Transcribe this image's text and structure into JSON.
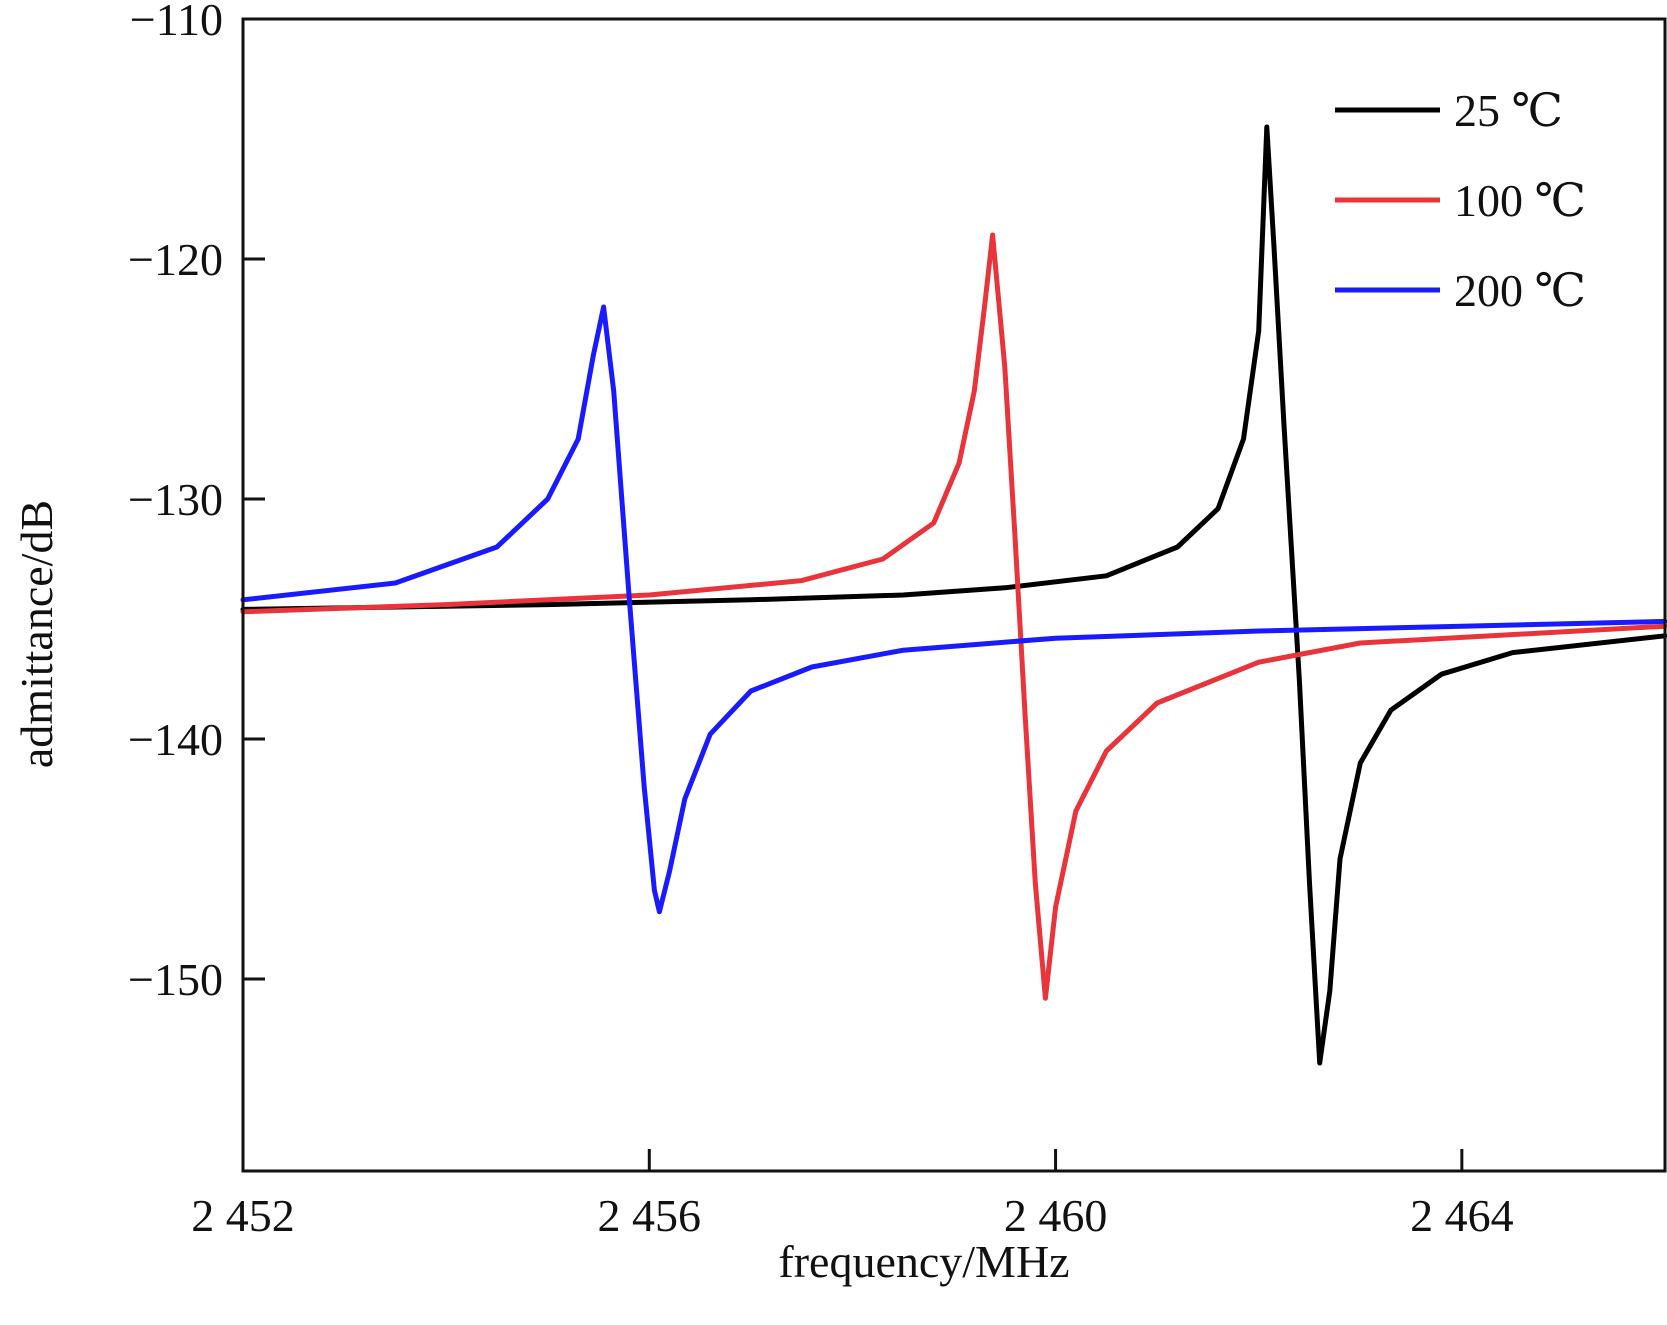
{
  "chart_data": {
    "type": "line",
    "title": "",
    "xlabel": "frequency/MHz",
    "ylabel": "admittance/dB",
    "xlim": [
      2452,
      2466
    ],
    "ylim": [
      -158,
      -110
    ],
    "xticks": [
      2452,
      2456,
      2460,
      2464
    ],
    "xtick_labels": [
      "2 452",
      "2 456",
      "2 460",
      "2 464"
    ],
    "yticks": [
      -110,
      -120,
      -130,
      -140,
      -150
    ],
    "ytick_labels": [
      "−110",
      "−120",
      "−130",
      "−140",
      "−150"
    ],
    "grid": false,
    "legend_position": "top-right",
    "series": [
      {
        "name": "25 ℃",
        "color": "#000000",
        "x": [
          2452,
          2455,
          2457,
          2458.5,
          2459.5,
          2460.5,
          2461.2,
          2461.6,
          2461.85,
          2462.0,
          2462.08,
          2462.15,
          2462.25,
          2462.4,
          2462.5,
          2462.6,
          2462.7,
          2462.8,
          2463.0,
          2463.3,
          2463.8,
          2464.5,
          2466
        ],
        "y": [
          -134.6,
          -134.4,
          -134.2,
          -134.0,
          -133.7,
          -133.2,
          -132.0,
          -130.4,
          -127.5,
          -123.0,
          -114.5,
          -119.5,
          -127.0,
          -137.5,
          -146.0,
          -153.5,
          -150.5,
          -145.0,
          -141.0,
          -138.8,
          -137.3,
          -136.4,
          -135.7
        ]
      },
      {
        "name": "100 ℃",
        "color": "#e8343a",
        "x": [
          2452,
          2454,
          2456,
          2457.5,
          2458.3,
          2458.8,
          2459.05,
          2459.2,
          2459.3,
          2459.38,
          2459.5,
          2459.6,
          2459.7,
          2459.8,
          2459.9,
          2460.0,
          2460.2,
          2460.5,
          2461,
          2462,
          2463,
          2466
        ],
        "y": [
          -134.7,
          -134.4,
          -134.0,
          -133.4,
          -132.5,
          -131.0,
          -128.5,
          -125.5,
          -122.0,
          -119.0,
          -124.5,
          -131.5,
          -139.0,
          -146.0,
          -150.8,
          -147.0,
          -143.0,
          -140.5,
          -138.5,
          -136.8,
          -136.0,
          -135.3
        ]
      },
      {
        "name": "200 ℃",
        "color": "#1a1aff",
        "x": [
          2452,
          2453.5,
          2454.5,
          2455.0,
          2455.3,
          2455.45,
          2455.55,
          2455.65,
          2455.8,
          2455.95,
          2456.05,
          2456.1,
          2456.2,
          2456.35,
          2456.6,
          2457.0,
          2457.6,
          2458.5,
          2460,
          2462,
          2464,
          2466
        ],
        "y": [
          -134.2,
          -133.5,
          -132.0,
          -130.0,
          -127.5,
          -124.0,
          -122.0,
          -125.5,
          -134.0,
          -142.0,
          -146.3,
          -147.2,
          -145.5,
          -142.5,
          -139.8,
          -138.0,
          -137.0,
          -136.3,
          -135.8,
          -135.5,
          -135.3,
          -135.1
        ]
      }
    ]
  }
}
